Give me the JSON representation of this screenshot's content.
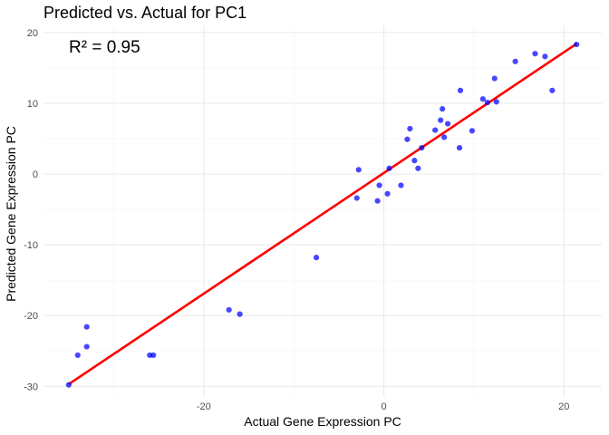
{
  "chart_data": {
    "type": "scatter",
    "title": "Predicted vs. Actual for PC1",
    "xlabel": "Actual Gene Expression PC",
    "ylabel": "Predicted Gene Expression PC",
    "xlim": [
      -37.8,
      24.2
    ],
    "ylim": [
      -31.5,
      21.0
    ],
    "x_ticks": [
      -20,
      0,
      20
    ],
    "y_ticks": [
      -30,
      -20,
      -10,
      0,
      10,
      20
    ],
    "grid": true,
    "legend": "none",
    "annotation": "R² = 0.95",
    "points": [
      [
        -35.0,
        -29.8
      ],
      [
        -34.0,
        -25.6
      ],
      [
        -33.0,
        -21.6
      ],
      [
        -33.0,
        -24.4
      ],
      [
        -26.0,
        -25.6
      ],
      [
        -25.6,
        -25.6
      ],
      [
        -17.2,
        -19.2
      ],
      [
        -16.0,
        -19.8
      ],
      [
        -7.5,
        -11.8
      ],
      [
        -3.0,
        -3.4
      ],
      [
        -2.8,
        0.6
      ],
      [
        -0.7,
        -3.8
      ],
      [
        -0.5,
        -1.6
      ],
      [
        0.4,
        -2.8
      ],
      [
        0.6,
        0.8
      ],
      [
        1.9,
        -1.6
      ],
      [
        2.6,
        4.9
      ],
      [
        2.9,
        6.4
      ],
      [
        3.4,
        1.9
      ],
      [
        3.8,
        0.8
      ],
      [
        4.2,
        3.7
      ],
      [
        5.7,
        6.2
      ],
      [
        6.3,
        7.6
      ],
      [
        6.5,
        9.2
      ],
      [
        6.7,
        5.2
      ],
      [
        7.1,
        7.1
      ],
      [
        8.4,
        3.7
      ],
      [
        8.5,
        11.8
      ],
      [
        9.8,
        6.1
      ],
      [
        11.0,
        10.6
      ],
      [
        11.5,
        10.1
      ],
      [
        12.3,
        13.5
      ],
      [
        12.5,
        10.2
      ],
      [
        14.6,
        15.9
      ],
      [
        16.8,
        17.0
      ],
      [
        17.9,
        16.6
      ],
      [
        18.7,
        11.8
      ],
      [
        21.4,
        18.3
      ]
    ],
    "fit_line": {
      "x": [
        -35.0,
        21.4
      ],
      "y": [
        -29.7,
        18.4
      ]
    },
    "colors": {
      "points": "#0000ff",
      "fit_line": "#ff0000",
      "grid_major": "#ebebeb",
      "grid_minor": "#f5f5f5"
    }
  }
}
